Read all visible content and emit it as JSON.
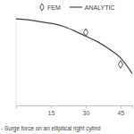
{
  "chart_data": {
    "type": "line",
    "title": "- Surge force on an elliptical right cylind",
    "xlim": [
      0,
      50
    ],
    "xticks": [
      15,
      30,
      45
    ],
    "ylim": [
      0,
      1
    ],
    "tick_labels": "x",
    "grid": false,
    "legend": "top",
    "series": [
      {
        "name": "FEM",
        "type": "scatter",
        "marker": "diamond",
        "color": "#595959",
        "x": [
          30,
          45
        ],
        "values": [
          0.8,
          0.45
        ]
      },
      {
        "name": "ANALYTIC",
        "type": "line",
        "line_style": "solid",
        "color": "#404040",
        "x": [
          0,
          5,
          10,
          15,
          20,
          25,
          30,
          35,
          40,
          45,
          50
        ],
        "values": [
          0.95,
          0.94,
          0.92,
          0.9,
          0.87,
          0.82,
          0.76,
          0.7,
          0.62,
          0.52,
          0.35
        ]
      }
    ]
  }
}
